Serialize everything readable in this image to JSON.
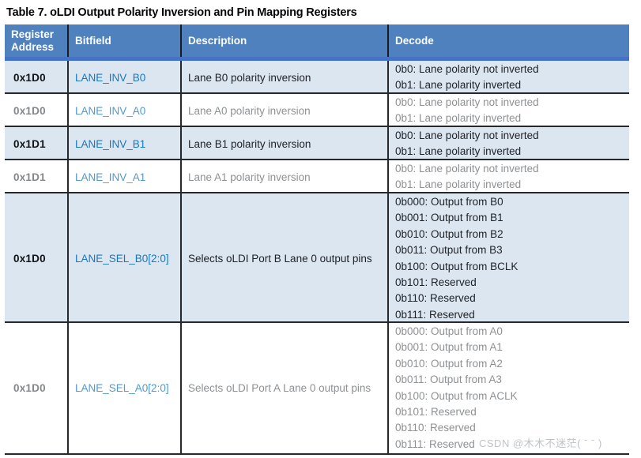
{
  "title": "Table 7. oLDI Output Polarity Inversion and Pin Mapping Registers",
  "watermark": "CSDN @木木不迷茫( ˉ ˉ )",
  "colors": {
    "header_bg": "#4E81BD",
    "header_accent_strip": "#4372C8",
    "row_highlight_bg": "#DCE6F1",
    "border_dark": "#26282C",
    "link_blue": "#1778BE",
    "link_blue_muted": "#509ACF",
    "text_dark": "#1E2126",
    "text_muted": "#8E9194"
  },
  "table": {
    "headers": [
      "Register Address",
      "Bitfield",
      "Description",
      "Decode"
    ],
    "rows": [
      {
        "address": "0x1D0",
        "bitfield": "LANE_INV_B0",
        "description": "Lane B0 polarity inversion",
        "decode": [
          "0b0: Lane polarity not inverted",
          "0b1: Lane polarity inverted"
        ],
        "highlighted": true
      },
      {
        "address": "0x1D0",
        "bitfield": "LANE_INV_A0",
        "description": "Lane A0 polarity inversion",
        "decode": [
          "0b0: Lane polarity not inverted",
          "0b1: Lane polarity inverted"
        ],
        "highlighted": false
      },
      {
        "address": "0x1D1",
        "bitfield": "LANE_INV_B1",
        "description": "Lane B1 polarity inversion",
        "decode": [
          "0b0: Lane polarity not inverted",
          "0b1: Lane polarity inverted"
        ],
        "highlighted": true
      },
      {
        "address": "0x1D1",
        "bitfield": "LANE_INV_A1",
        "description": "Lane A1 polarity inversion",
        "decode": [
          "0b0: Lane polarity not inverted",
          "0b1: Lane polarity inverted"
        ],
        "highlighted": false
      },
      {
        "address": "0x1D0",
        "bitfield": "LANE_SEL_B0[2:0]",
        "description": "Selects oLDI Port B Lane 0 output pins",
        "decode": [
          "0b000: Output from B0",
          "0b001: Output from B1",
          "0b010: Output from B2",
          "0b011: Output from B3",
          "0b100: Output from BCLK",
          "0b101: Reserved",
          "0b110: Reserved",
          "0b111: Reserved"
        ],
        "highlighted": true
      },
      {
        "address": "0x1D0",
        "bitfield": "LANE_SEL_A0[2:0]",
        "description": "Selects oLDI Port A Lane 0 output pins",
        "decode": [
          "0b000: Output from A0",
          "0b001: Output from A1",
          "0b010: Output from A2",
          "0b011: Output from A3",
          "0b100: Output from ACLK",
          "0b101: Reserved",
          "0b110: Reserved",
          "0b111: Reserved"
        ],
        "highlighted": false
      }
    ]
  }
}
